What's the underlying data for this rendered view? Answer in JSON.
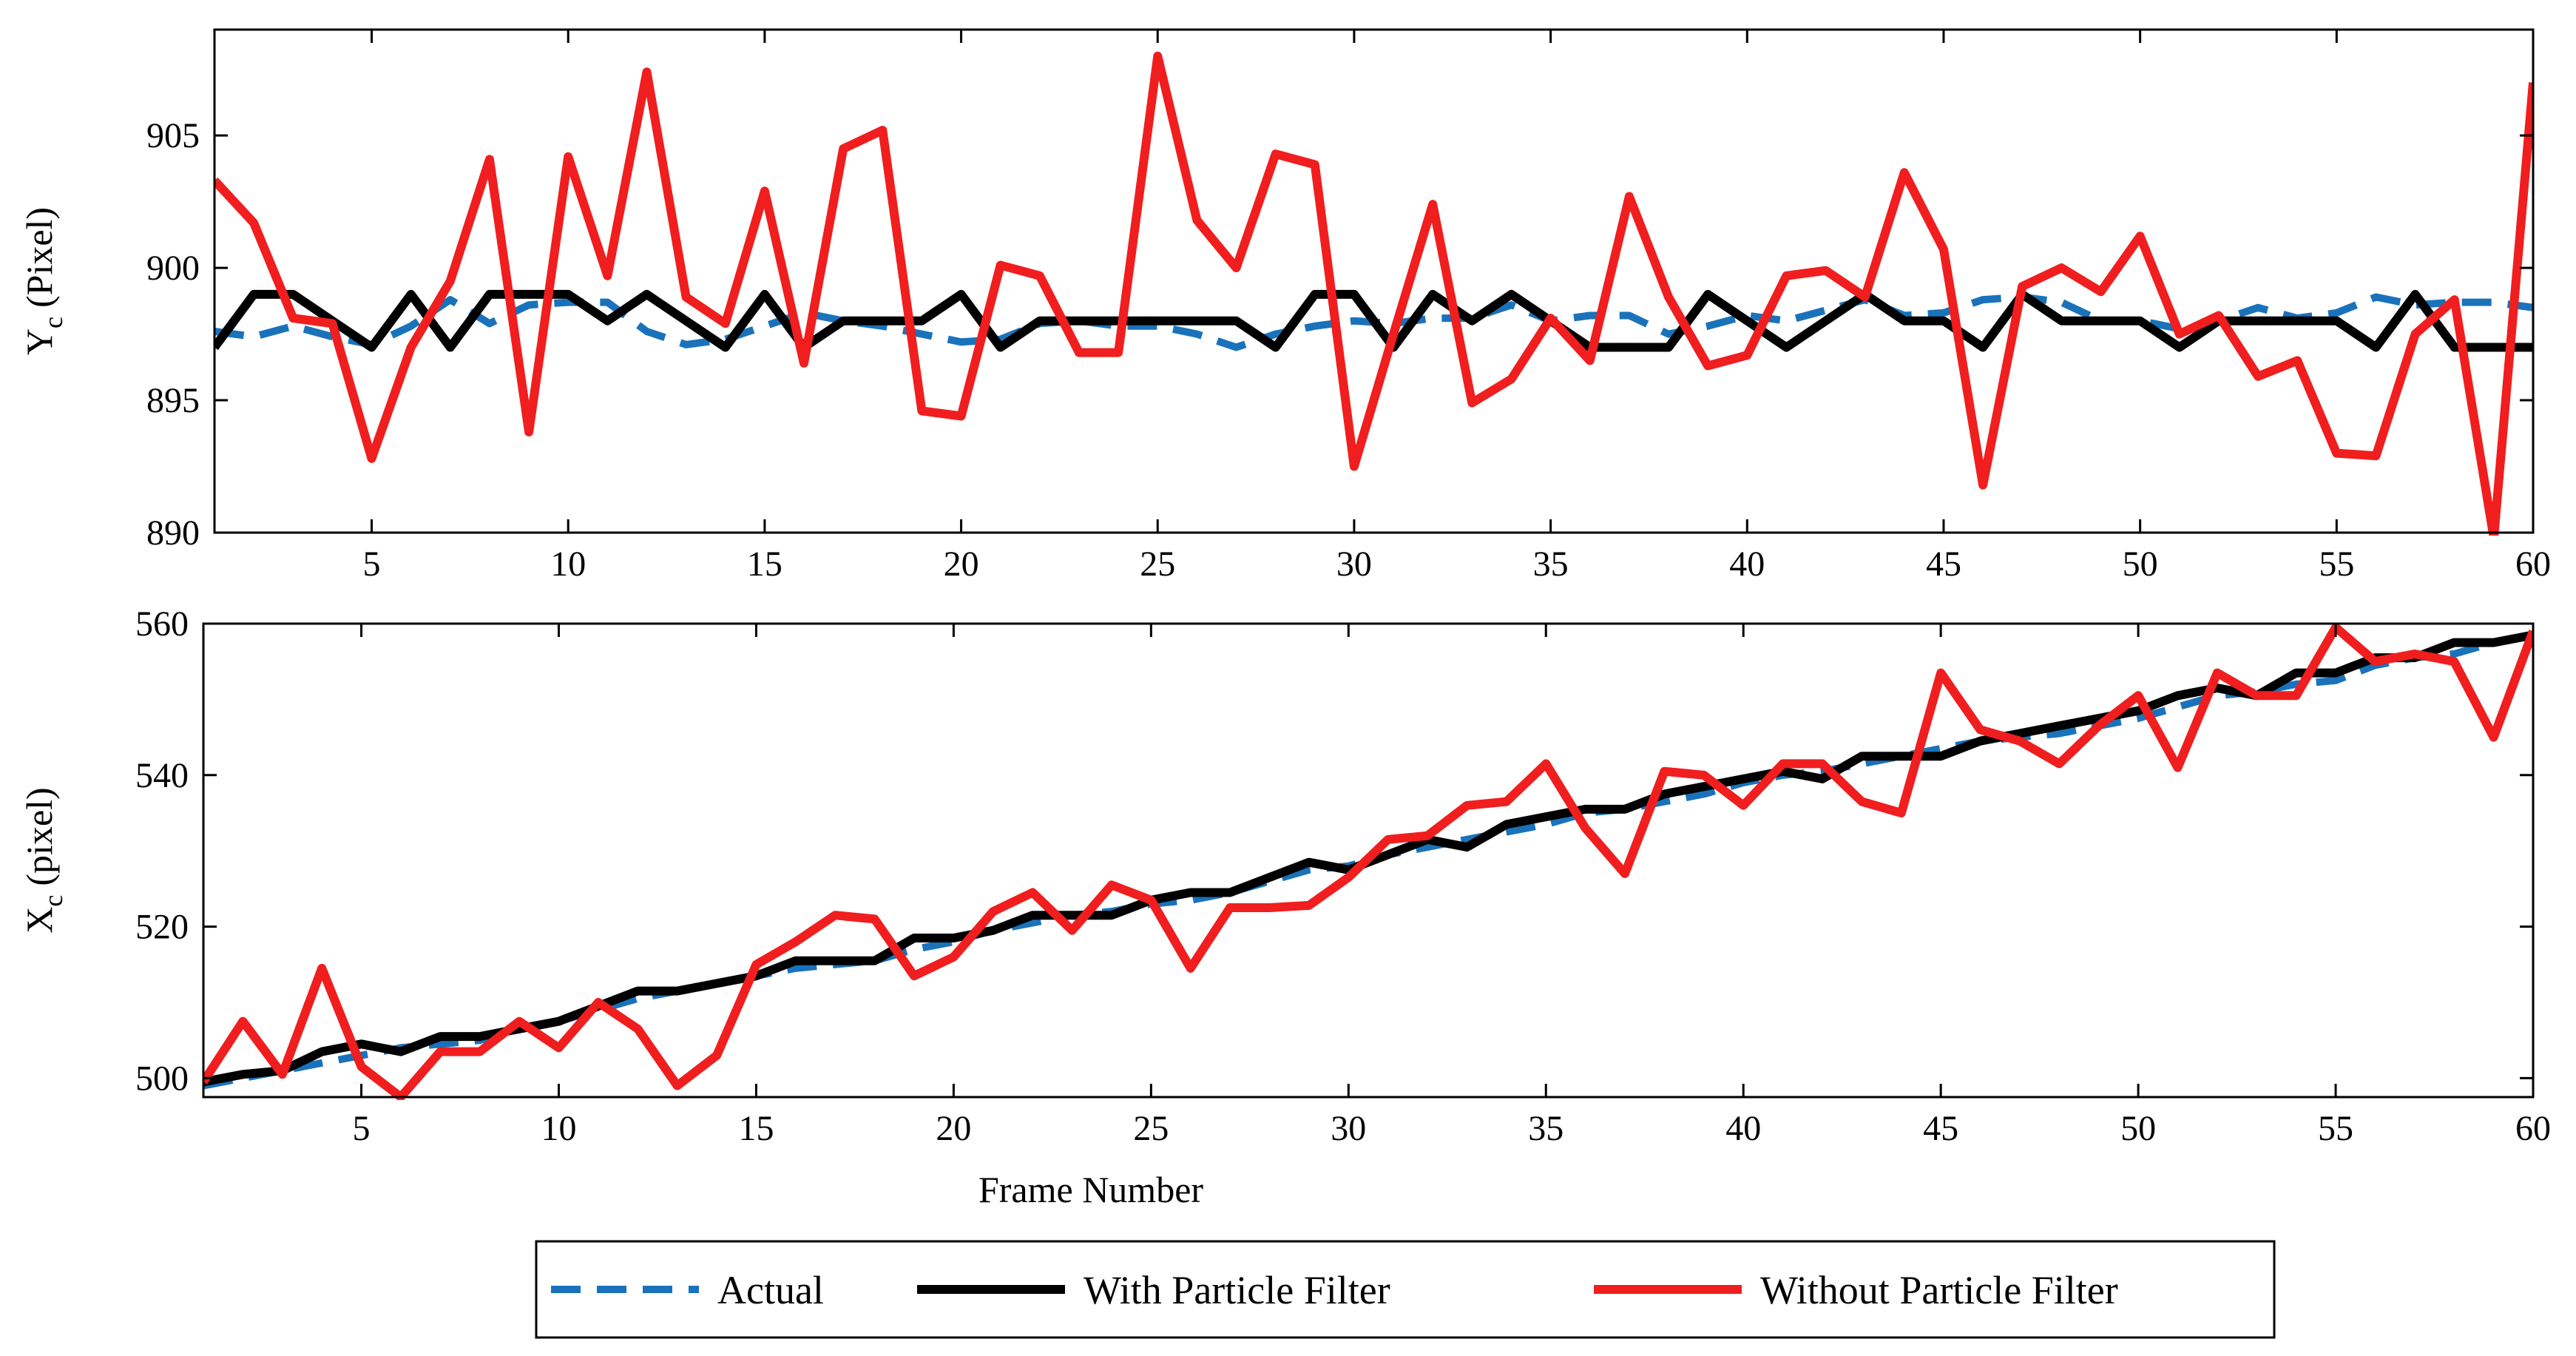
{
  "chart_data": [
    {
      "type": "line",
      "id": "yc",
      "title": "",
      "xlabel": "",
      "ylabel": "Y",
      "ylabel_sub": "c",
      "ylabel_unit": "(Pixel)",
      "xlim": [
        1,
        60
      ],
      "ylim": [
        890,
        909
      ],
      "xticks": [
        5,
        10,
        15,
        20,
        25,
        30,
        35,
        40,
        45,
        50,
        55,
        60
      ],
      "yticks": [
        890,
        895,
        900,
        905
      ],
      "x": [
        1,
        2,
        3,
        4,
        5,
        6,
        7,
        8,
        9,
        10,
        11,
        12,
        13,
        14,
        15,
        16,
        17,
        18,
        19,
        20,
        21,
        22,
        23,
        24,
        25,
        26,
        27,
        28,
        29,
        30,
        31,
        32,
        33,
        34,
        35,
        36,
        37,
        38,
        39,
        40,
        41,
        42,
        43,
        44,
        45,
        46,
        47,
        48,
        49,
        50,
        51,
        52,
        53,
        54,
        55,
        56,
        57,
        58,
        59,
        60
      ],
      "series": [
        {
          "name": "Actual",
          "color": "#1a72bb",
          "style": "dashed",
          "values": [
            897.6,
            897.4,
            897.8,
            897.4,
            897.1,
            897.8,
            898.8,
            897.9,
            898.6,
            898.7,
            898.7,
            897.6,
            897.1,
            897.3,
            897.8,
            898.3,
            898.0,
            897.8,
            897.5,
            897.2,
            897.3,
            897.9,
            898.0,
            897.8,
            897.8,
            897.5,
            897.0,
            897.5,
            897.8,
            898.0,
            897.9,
            898.1,
            898.1,
            898.6,
            898.0,
            898.2,
            898.2,
            897.5,
            897.8,
            898.2,
            898.0,
            898.4,
            898.8,
            898.2,
            898.3,
            898.8,
            898.9,
            898.7,
            898.0,
            898.0,
            897.7,
            898.0,
            898.5,
            898.1,
            898.3,
            898.9,
            898.6,
            898.7,
            898.7,
            898.5
          ]
        },
        {
          "name": "With Particle Filter",
          "color": "#000000",
          "style": "solid",
          "values": [
            897,
            899,
            899,
            898,
            897,
            899,
            897,
            899,
            899,
            899,
            898,
            899,
            898,
            897,
            899,
            897,
            898,
            898,
            898,
            899,
            897,
            898,
            898,
            898,
            898,
            898,
            898,
            897,
            899,
            899,
            897,
            899,
            898,
            899,
            898,
            897,
            897,
            897,
            899,
            898,
            897,
            898,
            899,
            898,
            898,
            897,
            899,
            898,
            898,
            898,
            897,
            898,
            898,
            898,
            898,
            897,
            899,
            897,
            897,
            897
          ]
        },
        {
          "name": "Without Particle Filter",
          "color": "#f01e1e",
          "style": "solid",
          "values": [
            903.3,
            901.7,
            898.1,
            897.9,
            892.8,
            897.0,
            899.5,
            904.1,
            893.8,
            904.2,
            899.7,
            907.4,
            898.9,
            897.9,
            902.9,
            896.4,
            904.5,
            905.2,
            894.6,
            894.4,
            900.1,
            899.7,
            896.8,
            896.8,
            908.0,
            901.8,
            900.0,
            904.3,
            903.9,
            892.5,
            897.5,
            902.4,
            894.9,
            895.8,
            898.1,
            896.5,
            902.7,
            898.9,
            896.3,
            896.7,
            899.7,
            899.9,
            898.9,
            903.6,
            900.7,
            891.8,
            899.3,
            900.0,
            899.1,
            901.2,
            897.5,
            898.2,
            895.9,
            896.5,
            893.0,
            892.9,
            897.5,
            898.8,
            889.8,
            907.0
          ]
        }
      ]
    },
    {
      "type": "line",
      "id": "xc",
      "title": "",
      "xlabel": "Frame Number",
      "ylabel": "X",
      "ylabel_sub": "c",
      "ylabel_unit": "(pixel)",
      "xlim": [
        1,
        60
      ],
      "ylim": [
        497.5,
        560
      ],
      "xticks": [
        5,
        10,
        15,
        20,
        25,
        30,
        35,
        40,
        45,
        50,
        55,
        60
      ],
      "yticks": [
        500,
        520,
        540,
        560
      ],
      "x": [
        1,
        2,
        3,
        4,
        5,
        6,
        7,
        8,
        9,
        10,
        11,
        12,
        13,
        14,
        15,
        16,
        17,
        18,
        19,
        20,
        21,
        22,
        23,
        24,
        25,
        26,
        27,
        28,
        29,
        30,
        31,
        32,
        33,
        34,
        35,
        36,
        37,
        38,
        39,
        40,
        41,
        42,
        43,
        44,
        45,
        46,
        47,
        48,
        49,
        50,
        51,
        52,
        53,
        54,
        55,
        56,
        57,
        58,
        59,
        60
      ],
      "series": [
        {
          "name": "Actual",
          "color": "#1a72bb",
          "style": "dashed",
          "values": [
            499,
            500,
            501,
            502,
            503,
            504,
            504.5,
            505,
            506.5,
            507.5,
            509,
            510.5,
            511.5,
            512.5,
            513.5,
            514.5,
            515,
            515.5,
            517,
            518,
            519.5,
            520.5,
            521.5,
            522,
            523,
            523.5,
            524.5,
            526,
            527.5,
            528,
            529.5,
            530.5,
            531.5,
            532.5,
            533.5,
            535,
            535.5,
            536.5,
            537.5,
            539,
            540,
            540.5,
            541.5,
            542.5,
            543.5,
            544.5,
            545,
            545.5,
            546.5,
            547.5,
            549,
            550.5,
            551,
            552,
            552.5,
            554.5,
            555.5,
            556,
            557.5,
            558.5
          ]
        },
        {
          "name": "With Particle Filter",
          "color": "#000000",
          "style": "solid",
          "values": [
            499.5,
            500.5,
            501,
            503.5,
            504.5,
            503.5,
            505.5,
            505.5,
            506.5,
            507.5,
            509.5,
            511.5,
            511.5,
            512.5,
            513.5,
            515.5,
            515.5,
            515.5,
            518.5,
            518.5,
            519.5,
            521.5,
            521.5,
            521.5,
            523.5,
            524.5,
            524.5,
            526.5,
            528.5,
            527.5,
            529.5,
            531.5,
            530.5,
            533.5,
            534.5,
            535.5,
            535.5,
            537.5,
            538.5,
            539.5,
            540.5,
            539.5,
            542.5,
            542.5,
            542.5,
            544.5,
            545.5,
            546.5,
            547.5,
            548.5,
            550.5,
            551.5,
            550.5,
            553.5,
            553.5,
            555.5,
            555.5,
            557.5,
            557.5,
            558.5
          ]
        },
        {
          "name": "Without Particle Filter",
          "color": "#f01e1e",
          "style": "solid",
          "values": [
            499.5,
            507.5,
            500.5,
            514.5,
            501.5,
            497.5,
            503.5,
            503.5,
            507.5,
            504,
            510,
            506.5,
            499,
            503,
            515,
            518,
            521.5,
            521,
            513.5,
            516,
            522,
            524.5,
            519.5,
            525.5,
            523.5,
            514.5,
            522.5,
            522.5,
            522.8,
            526.5,
            531.5,
            532,
            536,
            536.5,
            541.5,
            533,
            527,
            540.5,
            540,
            536,
            541.5,
            541.5,
            536.5,
            535,
            553.5,
            546,
            544.5,
            541.5,
            546.5,
            550.5,
            541,
            553.5,
            550.5,
            550.5,
            559.5,
            555,
            556,
            555,
            545,
            559
          ]
        }
      ]
    }
  ],
  "legend": {
    "items": [
      {
        "label": "Actual",
        "color": "#1a72bb",
        "style": "dashed"
      },
      {
        "label": "With Particle Filter",
        "color": "#000000",
        "style": "solid"
      },
      {
        "label": "Without Particle Filter",
        "color": "#f01e1e",
        "style": "solid"
      }
    ]
  }
}
